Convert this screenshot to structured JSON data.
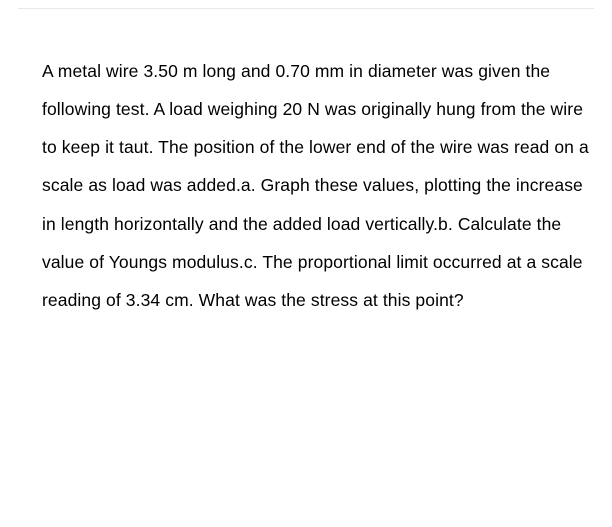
{
  "problem": {
    "text": "A metal wire 3.50 m long and 0.70 mm in diameter was given the following test. A load weighing 20 N was originally hung from the wire to keep it taut. The position of the lower end of the wire was read on a scale as load was added.a.  Graph these values, plotting the increase in length horizontally and the added load vertically.b.  Calculate the value of Youngs modulus.c. The proportional limit occurred at a scale reading of 3.34 cm.  What was the stress at this point?",
    "fontsize": 17.5,
    "line_height": 2.18,
    "color": "#000000",
    "background_color": "#ffffff",
    "divider_color": "#e8e8e8"
  }
}
